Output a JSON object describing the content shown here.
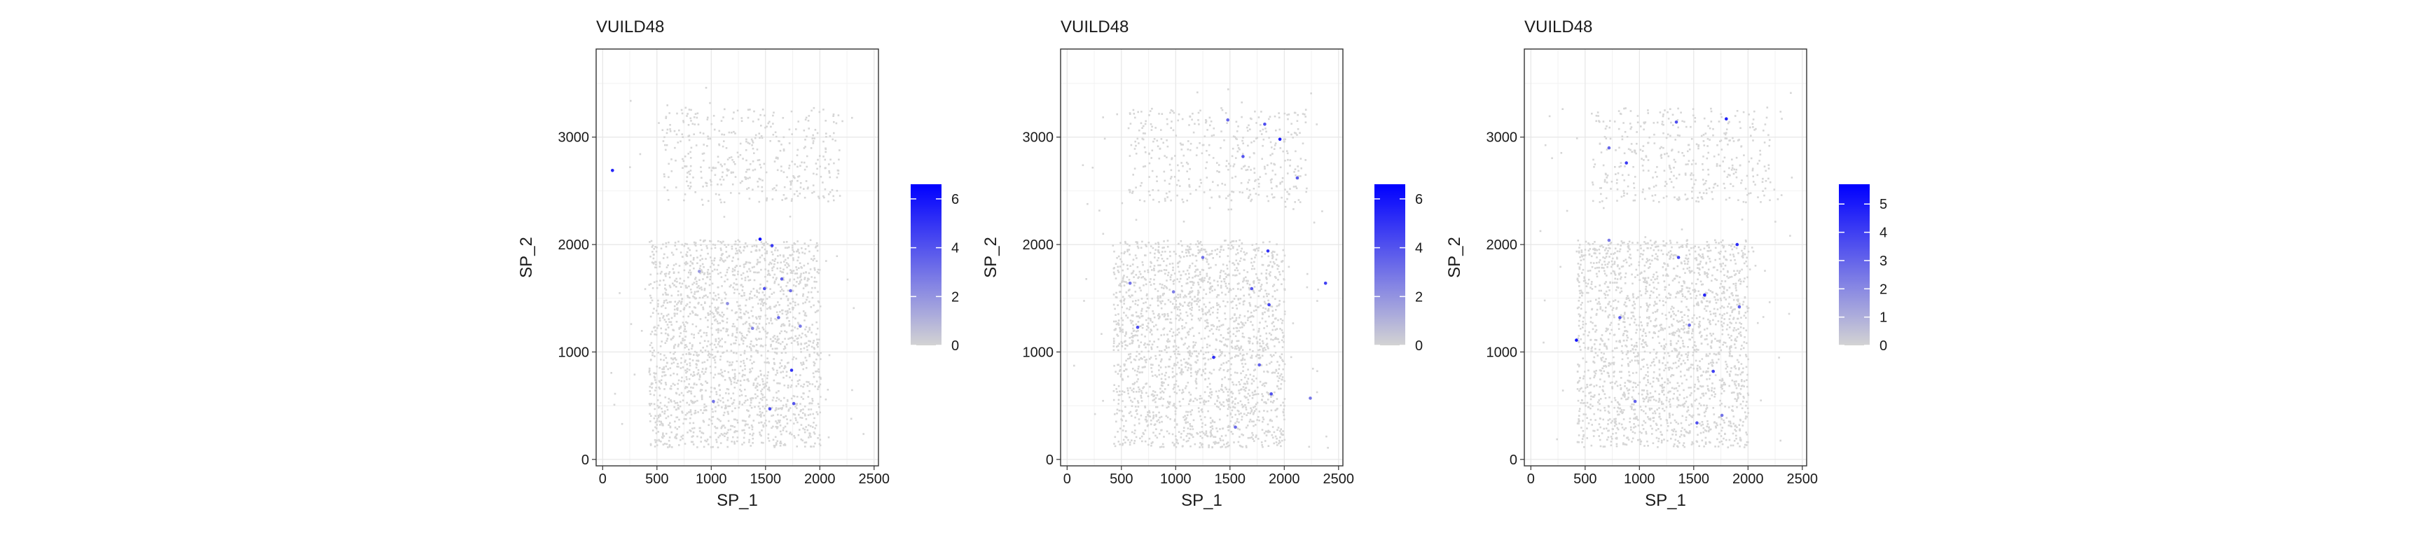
{
  "chart_data": [
    {
      "type": "scatter",
      "title": "VUILD48",
      "xlabel": "SP_1",
      "ylabel": "SP_2",
      "xlim": [
        -60,
        2540
      ],
      "ylim": [
        -60,
        3820
      ],
      "xticks": [
        0,
        500,
        1000,
        1500,
        2000,
        2500
      ],
      "yticks": [
        0,
        1000,
        2000,
        3000
      ],
      "grid": true,
      "legend_position": "right",
      "color_scale": {
        "low": "#d3d3d3",
        "high": "#0000ff",
        "min": 0,
        "max": 6.6,
        "ticks": [
          0,
          2,
          4,
          6
        ]
      },
      "highlight_points": [
        {
          "x": 90,
          "y": 2690,
          "v": 5.5
        },
        {
          "x": 1450,
          "y": 2050,
          "v": 6.2
        },
        {
          "x": 1560,
          "y": 1990,
          "v": 4.8
        },
        {
          "x": 1650,
          "y": 1680,
          "v": 3.6
        },
        {
          "x": 1490,
          "y": 1590,
          "v": 4.1
        },
        {
          "x": 1730,
          "y": 1570,
          "v": 3.2
        },
        {
          "x": 1820,
          "y": 1240,
          "v": 2.8
        },
        {
          "x": 1740,
          "y": 830,
          "v": 5.1
        },
        {
          "x": 1540,
          "y": 470,
          "v": 4.4
        },
        {
          "x": 1760,
          "y": 520,
          "v": 3.9
        },
        {
          "x": 1020,
          "y": 540,
          "v": 3.0
        },
        {
          "x": 1380,
          "y": 1220,
          "v": 2.5
        },
        {
          "x": 1150,
          "y": 1450,
          "v": 2.2
        },
        {
          "x": 890,
          "y": 1750,
          "v": 1.8
        },
        {
          "x": 1620,
          "y": 1320,
          "v": 3.4
        }
      ]
    },
    {
      "type": "scatter",
      "title": "VUILD48",
      "xlabel": "SP_1",
      "ylabel": "SP_2",
      "xlim": [
        -60,
        2540
      ],
      "ylim": [
        -60,
        3820
      ],
      "xticks": [
        0,
        500,
        1000,
        1500,
        2000,
        2500
      ],
      "yticks": [
        0,
        1000,
        2000,
        3000
      ],
      "grid": true,
      "legend_position": "right",
      "color_scale": {
        "low": "#d3d3d3",
        "high": "#0000ff",
        "min": 0,
        "max": 6.6,
        "ticks": [
          0,
          2,
          4,
          6
        ]
      },
      "highlight_points": [
        {
          "x": 1960,
          "y": 2980,
          "v": 5.8
        },
        {
          "x": 1820,
          "y": 3120,
          "v": 4.2
        },
        {
          "x": 1480,
          "y": 3160,
          "v": 3.5
        },
        {
          "x": 1620,
          "y": 2820,
          "v": 4.0
        },
        {
          "x": 2120,
          "y": 2620,
          "v": 3.8
        },
        {
          "x": 2380,
          "y": 1640,
          "v": 4.6
        },
        {
          "x": 1850,
          "y": 1940,
          "v": 5.0
        },
        {
          "x": 1700,
          "y": 1590,
          "v": 3.9
        },
        {
          "x": 1860,
          "y": 1440,
          "v": 4.4
        },
        {
          "x": 1250,
          "y": 1880,
          "v": 3.1
        },
        {
          "x": 650,
          "y": 1230,
          "v": 4.3
        },
        {
          "x": 1350,
          "y": 950,
          "v": 5.2
        },
        {
          "x": 1770,
          "y": 880,
          "v": 3.6
        },
        {
          "x": 1880,
          "y": 610,
          "v": 4.1
        },
        {
          "x": 1550,
          "y": 300,
          "v": 3.3
        },
        {
          "x": 2240,
          "y": 570,
          "v": 2.9
        },
        {
          "x": 980,
          "y": 1560,
          "v": 2.7
        },
        {
          "x": 580,
          "y": 1640,
          "v": 3.0
        }
      ]
    },
    {
      "type": "scatter",
      "title": "VUILD48",
      "xlabel": "SP_1",
      "ylabel": "SP_2",
      "xlim": [
        -60,
        2540
      ],
      "ylim": [
        -60,
        3820
      ],
      "xticks": [
        0,
        500,
        1000,
        1500,
        2000,
        2500
      ],
      "yticks": [
        0,
        1000,
        2000,
        3000
      ],
      "grid": true,
      "legend_position": "right",
      "color_scale": {
        "low": "#d3d3d3",
        "high": "#0000ff",
        "min": 0,
        "max": 5.7,
        "ticks": [
          0,
          1,
          2,
          3,
          4,
          5
        ]
      },
      "highlight_points": [
        {
          "x": 1800,
          "y": 3170,
          "v": 4.8
        },
        {
          "x": 1340,
          "y": 3140,
          "v": 3.6
        },
        {
          "x": 880,
          "y": 2760,
          "v": 4.1
        },
        {
          "x": 720,
          "y": 2900,
          "v": 3.0
        },
        {
          "x": 1900,
          "y": 2000,
          "v": 4.5
        },
        {
          "x": 1360,
          "y": 1880,
          "v": 3.9
        },
        {
          "x": 1600,
          "y": 1530,
          "v": 4.7
        },
        {
          "x": 1920,
          "y": 1420,
          "v": 3.2
        },
        {
          "x": 420,
          "y": 1110,
          "v": 5.2
        },
        {
          "x": 820,
          "y": 1320,
          "v": 3.4
        },
        {
          "x": 1460,
          "y": 1250,
          "v": 2.9
        },
        {
          "x": 1680,
          "y": 820,
          "v": 4.0
        },
        {
          "x": 960,
          "y": 540,
          "v": 3.1
        },
        {
          "x": 1530,
          "y": 340,
          "v": 3.5
        },
        {
          "x": 1760,
          "y": 410,
          "v": 2.6
        },
        {
          "x": 720,
          "y": 2040,
          "v": 2.4
        }
      ]
    }
  ]
}
